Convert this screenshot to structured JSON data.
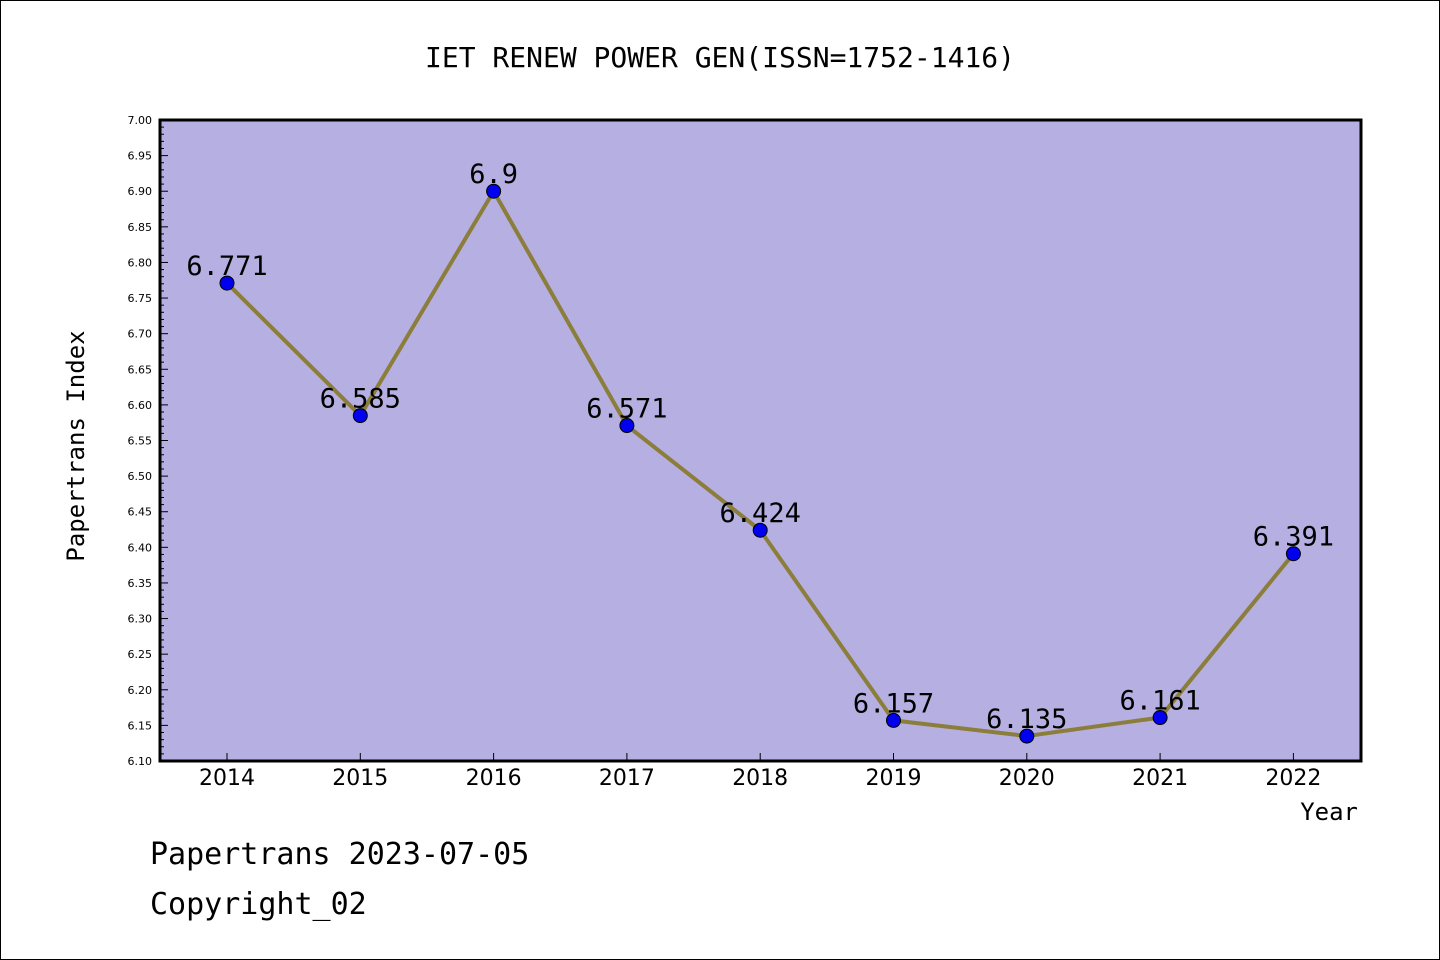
{
  "chart_data": {
    "type": "line",
    "title": "IET RENEW POWER GEN(ISSN=1752-1416)",
    "xlabel": "Year",
    "ylabel": "Papertrans Index",
    "categories": [
      "2014",
      "2015",
      "2016",
      "2017",
      "2018",
      "2019",
      "2020",
      "2021",
      "2022"
    ],
    "values": [
      6.771,
      6.585,
      6.9,
      6.571,
      6.424,
      6.157,
      6.135,
      6.161,
      6.391
    ],
    "data_labels": [
      "6.771",
      "6.585",
      "6.9",
      "6.571",
      "6.424",
      "6.157",
      "6.135",
      "6.161",
      "6.391"
    ],
    "ylim": [
      6.1,
      7.0
    ],
    "yticks": [
      "6.10",
      "6.15",
      "6.20",
      "6.25",
      "6.30",
      "6.35",
      "6.40",
      "6.45",
      "6.50",
      "6.55",
      "6.60",
      "6.65",
      "6.70",
      "6.75",
      "6.80",
      "6.85",
      "6.90",
      "6.95",
      "7.00"
    ],
    "grid": false,
    "colors": {
      "plot_background": "#b5afe2",
      "line": "#8b7d3a",
      "marker": "#0000ee"
    }
  },
  "footer": {
    "line1": "Papertrans 2023-07-05",
    "line2": "Copyright_02"
  }
}
